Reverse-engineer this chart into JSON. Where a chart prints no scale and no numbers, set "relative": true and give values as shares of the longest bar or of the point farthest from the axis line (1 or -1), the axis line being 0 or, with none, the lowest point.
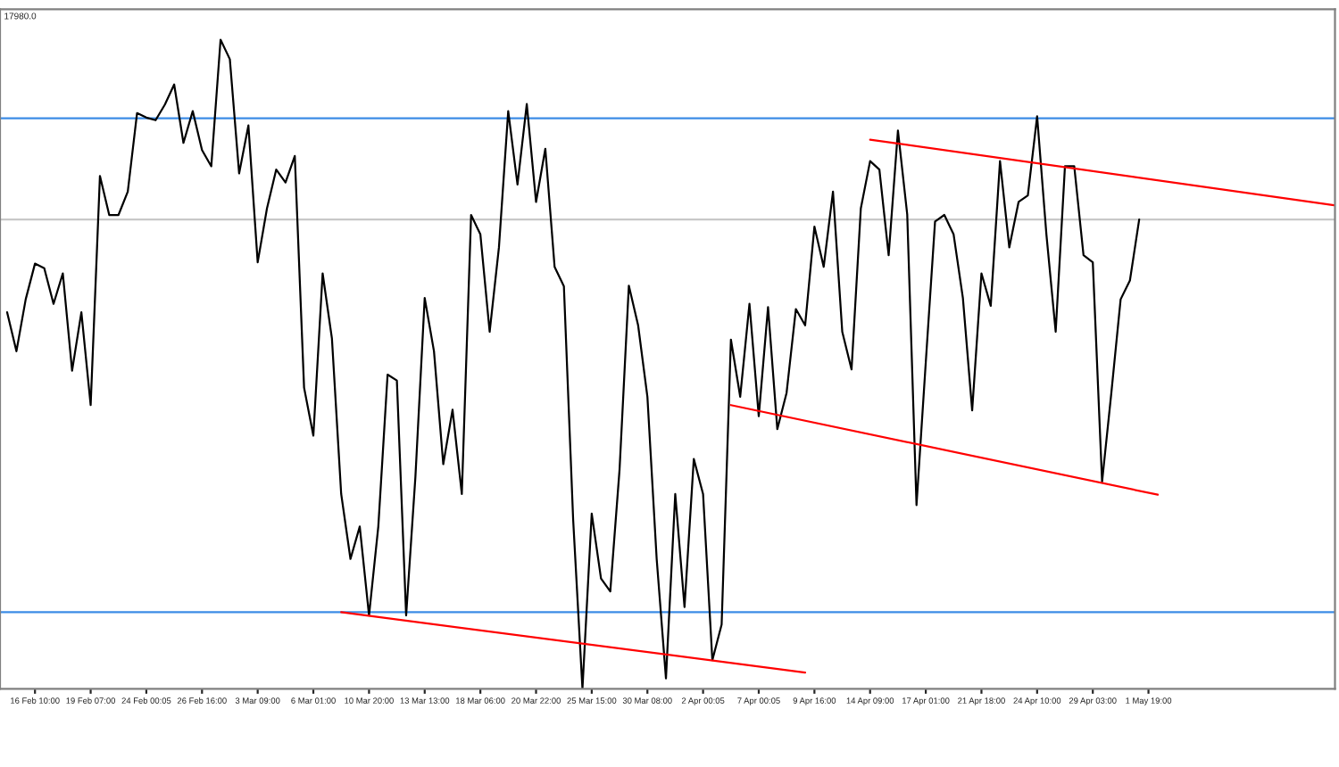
{
  "chart_data": {
    "type": "line",
    "relative": true,
    "legend": false,
    "grid": false,
    "tick_labels": "x",
    "annotations": [
      "17980.0"
    ],
    "categories": [
      null,
      null,
      null,
      "16 Feb 10:00",
      null,
      null,
      null,
      null,
      null,
      "19 Feb 07:00",
      null,
      null,
      null,
      null,
      null,
      "24 Feb 00:05",
      null,
      null,
      null,
      null,
      null,
      "26 Feb 16:00",
      null,
      null,
      null,
      null,
      null,
      "3 Mar 09:00",
      null,
      null,
      null,
      null,
      null,
      "6 Mar 01:00",
      null,
      null,
      null,
      null,
      null,
      "10 Mar 20:00",
      null,
      null,
      null,
      null,
      null,
      "13 Mar 13:00",
      null,
      null,
      null,
      null,
      null,
      "18 Mar 06:00",
      null,
      null,
      null,
      null,
      null,
      "20 Mar 22:00",
      null,
      null,
      null,
      null,
      null,
      "25 Mar 15:00",
      null,
      null,
      null,
      null,
      null,
      "30 Mar 08:00",
      null,
      null,
      null,
      null,
      null,
      "2 Apr 00:05",
      null,
      null,
      null,
      null,
      null,
      "7 Apr 00:05",
      null,
      null,
      null,
      null,
      null,
      "9 Apr 16:00",
      null,
      null,
      null,
      null,
      null,
      "14 Apr 09:00",
      null,
      null,
      null,
      null,
      null,
      "17 Apr 01:00",
      null,
      null,
      null,
      null,
      null,
      "21 Apr 18:00",
      null,
      null,
      null,
      null,
      null,
      "24 Apr 10:00",
      null,
      null,
      null,
      null,
      null,
      "29 Apr 03:00",
      null,
      null,
      null,
      null,
      null,
      "1 May 19:00",
      null,
      null,
      null,
      null,
      null,
      null,
      null,
      null,
      null,
      null,
      null,
      null,
      null,
      null,
      null,
      null,
      null,
      null,
      null,
      null
    ],
    "ref_lines": [
      {
        "axis": "y",
        "value": 0.879,
        "color": "#3c8ce6"
      },
      {
        "axis": "y",
        "value": 0.118,
        "color": "#3c8ce6"
      },
      {
        "axis": "y",
        "value": 0.723,
        "color": "#c8c8c8"
      }
    ],
    "series": [
      {
        "color": "#000000",
        "values": [
          0.58,
          0.52,
          0.6,
          0.655,
          0.648,
          0.593,
          0.64,
          0.49,
          0.58,
          0.437,
          0.79,
          0.73,
          0.73,
          0.766,
          0.887,
          0.88,
          0.876,
          0.9,
          0.931,
          0.841,
          0.89,
          0.83,
          0.805,
          1,
          0.97,
          0.794,
          0.868,
          0.657,
          0.74,
          0.8,
          0.78,
          0.821,
          0.464,
          0.39,
          0.64,
          0.54,
          0.3,
          0.2,
          0.25,
          0.113,
          0.25,
          0.484,
          0.475,
          0.113,
          0.327,
          0.602,
          0.52,
          0.346,
          0.43,
          0.3,
          0.73,
          0.7,
          0.55,
          0.68,
          0.89,
          0.777,
          0.901,
          0.75,
          0.832,
          0.65,
          0.62,
          0.26,
          0,
          0.27,
          0.17,
          0.15,
          0.338,
          0.621,
          0.56,
          0.45,
          0.2,
          0.016,
          0.3,
          0.126,
          0.354,
          0.3,
          0.044,
          0.099,
          0.538,
          0.45,
          0.593,
          0.42,
          0.588,
          0.4,
          0.456,
          0.585,
          0.56,
          0.712,
          0.65,
          0.766,
          0.55,
          0.492,
          0.74,
          0.813,
          0.8,
          0.668,
          0.86,
          0.731,
          0.283,
          0.503,
          0.72,
          0.73,
          0.7,
          0.602,
          0.429,
          0.64,
          0.59,
          0.813,
          0.68,
          0.75,
          0.76,
          0.882,
          0.7,
          0.55,
          0.805,
          0.805,
          0.668,
          0.657,
          0.319,
          0.456,
          0.6,
          0.629,
          0.723,
          null,
          null,
          null,
          null,
          null,
          null,
          null,
          null,
          null,
          null,
          null,
          null,
          null,
          null,
          null,
          null,
          null,
          null,
          null,
          null,
          null
        ]
      },
      {
        "color": "#ff0000",
        "values": [
          null,
          null,
          null,
          null,
          null,
          null,
          null,
          null,
          null,
          null,
          null,
          null,
          null,
          null,
          null,
          null,
          null,
          null,
          null,
          null,
          null,
          null,
          null,
          null,
          null,
          null,
          null,
          null,
          null,
          null,
          null,
          null,
          null,
          null,
          null,
          null,
          0.118,
          null,
          null,
          null,
          null,
          null,
          null,
          null,
          null,
          null,
          null,
          null,
          null,
          null,
          null,
          null,
          null,
          null,
          null,
          null,
          null,
          null,
          null,
          null,
          null,
          null,
          null,
          null,
          null,
          null,
          null,
          null,
          null,
          null,
          null,
          null,
          null,
          null,
          null,
          null,
          null,
          null,
          null,
          null,
          null,
          null,
          null,
          null,
          null,
          null,
          0.025,
          null,
          null,
          null,
          null,
          null,
          null,
          null,
          null,
          null,
          null,
          null,
          null,
          null,
          null,
          null,
          null,
          null,
          null,
          null,
          null,
          null,
          null,
          null,
          null,
          null,
          null,
          null,
          null,
          null,
          null,
          null,
          null,
          null,
          null,
          null,
          null,
          null,
          null,
          null,
          null,
          null,
          null,
          null,
          null,
          null,
          null,
          null,
          null,
          null,
          null,
          null,
          null,
          null,
          null,
          null,
          null,
          null
        ]
      },
      {
        "color": "#ff0000",
        "values": [
          null,
          null,
          null,
          null,
          null,
          null,
          null,
          null,
          null,
          null,
          null,
          null,
          null,
          null,
          null,
          null,
          null,
          null,
          null,
          null,
          null,
          null,
          null,
          null,
          null,
          null,
          null,
          null,
          null,
          null,
          null,
          null,
          null,
          null,
          null,
          null,
          null,
          null,
          null,
          null,
          null,
          null,
          null,
          null,
          null,
          null,
          null,
          null,
          null,
          null,
          null,
          null,
          null,
          null,
          null,
          null,
          null,
          null,
          null,
          null,
          null,
          null,
          null,
          null,
          null,
          null,
          null,
          null,
          null,
          null,
          null,
          null,
          null,
          null,
          null,
          null,
          null,
          null,
          0.437,
          null,
          null,
          null,
          null,
          null,
          null,
          null,
          null,
          null,
          null,
          null,
          null,
          null,
          null,
          null,
          null,
          null,
          null,
          null,
          null,
          null,
          null,
          null,
          null,
          null,
          null,
          null,
          null,
          null,
          null,
          null,
          null,
          null,
          null,
          null,
          null,
          null,
          null,
          null,
          null,
          null,
          null,
          null,
          null,
          null,
          0.299,
          null,
          null,
          null,
          null,
          null,
          null,
          null,
          null,
          null,
          null,
          null,
          null,
          null,
          null,
          null,
          null,
          null,
          null,
          null
        ]
      },
      {
        "color": "#ff0000",
        "values": [
          null,
          null,
          null,
          null,
          null,
          null,
          null,
          null,
          null,
          null,
          null,
          null,
          null,
          null,
          null,
          null,
          null,
          null,
          null,
          null,
          null,
          null,
          null,
          null,
          null,
          null,
          null,
          null,
          null,
          null,
          null,
          null,
          null,
          null,
          null,
          null,
          null,
          null,
          null,
          null,
          null,
          null,
          null,
          null,
          null,
          null,
          null,
          null,
          null,
          null,
          null,
          null,
          null,
          null,
          null,
          null,
          null,
          null,
          null,
          null,
          null,
          null,
          null,
          null,
          null,
          null,
          null,
          null,
          null,
          null,
          null,
          null,
          null,
          null,
          null,
          null,
          null,
          null,
          null,
          null,
          null,
          null,
          null,
          null,
          null,
          null,
          null,
          null,
          null,
          null,
          null,
          null,
          null,
          0.846,
          null,
          null,
          null,
          null,
          null,
          null,
          null,
          null,
          null,
          null,
          null,
          null,
          null,
          null,
          null,
          null,
          null,
          null,
          null,
          null,
          null,
          null,
          null,
          null,
          null,
          null,
          null,
          null,
          null,
          null,
          null,
          null,
          null,
          null,
          null,
          null,
          null,
          null,
          null,
          null,
          null,
          null,
          null,
          null,
          null,
          null,
          null,
          null,
          null,
          0.745
        ]
      }
    ]
  }
}
